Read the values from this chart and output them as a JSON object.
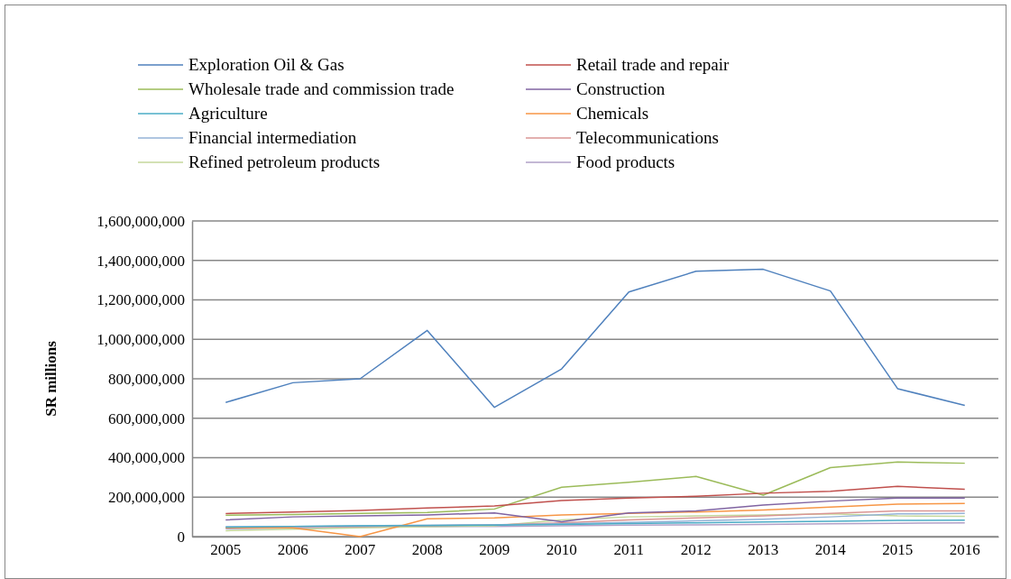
{
  "chart_data": {
    "type": "line",
    "ylabel": "SR millions",
    "categories": [
      "2005",
      "2006",
      "2007",
      "2008",
      "2009",
      "2010",
      "2011",
      "2012",
      "2013",
      "2014",
      "2015",
      "2016"
    ],
    "ylim": [
      0,
      1600000000
    ],
    "yticks": [
      {
        "value": 0,
        "label": "0"
      },
      {
        "value": 200000000,
        "label": "200,000,000"
      },
      {
        "value": 400000000,
        "label": "400,000,000"
      },
      {
        "value": 600000000,
        "label": "600,000,000"
      },
      {
        "value": 800000000,
        "label": "800,000,000"
      },
      {
        "value": 1000000000,
        "label": "1,000,000,000"
      },
      {
        "value": 1200000000,
        "label": "1,200,000,000"
      },
      {
        "value": 1400000000,
        "label": "1,400,000,000"
      },
      {
        "value": 1600000000,
        "label": "1,600,000,000"
      }
    ],
    "grid": "y",
    "legend": "top",
    "marker": "none",
    "line_style": "solid",
    "series": [
      {
        "name": "Exploration Oil & Gas",
        "color": "#4f81bd",
        "values": [
          680000000,
          780000000,
          800000000,
          1045000000,
          655000000,
          850000000,
          1240000000,
          1345000000,
          1355000000,
          1245000000,
          750000000,
          665000000
        ]
      },
      {
        "name": "Retail trade and repair",
        "color": "#c0504d",
        "values": [
          117000000,
          125000000,
          133000000,
          145000000,
          155000000,
          183000000,
          195000000,
          205000000,
          220000000,
          230000000,
          255000000,
          240000000
        ]
      },
      {
        "name": "Wholesale trade and commission trade",
        "color": "#9bbb59",
        "values": [
          108000000,
          112000000,
          118000000,
          122000000,
          140000000,
          250000000,
          275000000,
          305000000,
          210000000,
          350000000,
          378000000,
          372000000
        ]
      },
      {
        "name": "Construction",
        "color": "#8064a2",
        "values": [
          85000000,
          100000000,
          105000000,
          110000000,
          120000000,
          75000000,
          120000000,
          130000000,
          160000000,
          180000000,
          195000000,
          195000000
        ]
      },
      {
        "name": "Agriculture",
        "color": "#4bacc6",
        "values": [
          48000000,
          52000000,
          55000000,
          56000000,
          58000000,
          62000000,
          66000000,
          70000000,
          74000000,
          78000000,
          82000000,
          84000000
        ]
      },
      {
        "name": "Chemicals",
        "color": "#f79646",
        "values": [
          45000000,
          45000000,
          0,
          90000000,
          95000000,
          110000000,
          118000000,
          125000000,
          135000000,
          150000000,
          165000000,
          168000000
        ]
      },
      {
        "name": "Financial intermediation",
        "color": "#95b3d7",
        "values": [
          50000000,
          52000000,
          55000000,
          58000000,
          60000000,
          65000000,
          72000000,
          80000000,
          88000000,
          100000000,
          115000000,
          118000000
        ]
      },
      {
        "name": "Telecommunications",
        "color": "#da9694",
        "values": [
          45000000,
          50000000,
          52000000,
          55000000,
          60000000,
          70000000,
          85000000,
          95000000,
          105000000,
          118000000,
          130000000,
          130000000
        ]
      },
      {
        "name": "Refined petroleum products",
        "color": "#c4d79b",
        "values": [
          30000000,
          38000000,
          45000000,
          50000000,
          55000000,
          85000000,
          100000000,
          105000000,
          110000000,
          115000000,
          105000000,
          103000000
        ]
      },
      {
        "name": "Food products",
        "color": "#b1a0c7",
        "values": [
          40000000,
          45000000,
          48000000,
          50000000,
          52000000,
          55000000,
          58000000,
          60000000,
          62000000,
          65000000,
          68000000,
          70000000
        ]
      }
    ]
  }
}
